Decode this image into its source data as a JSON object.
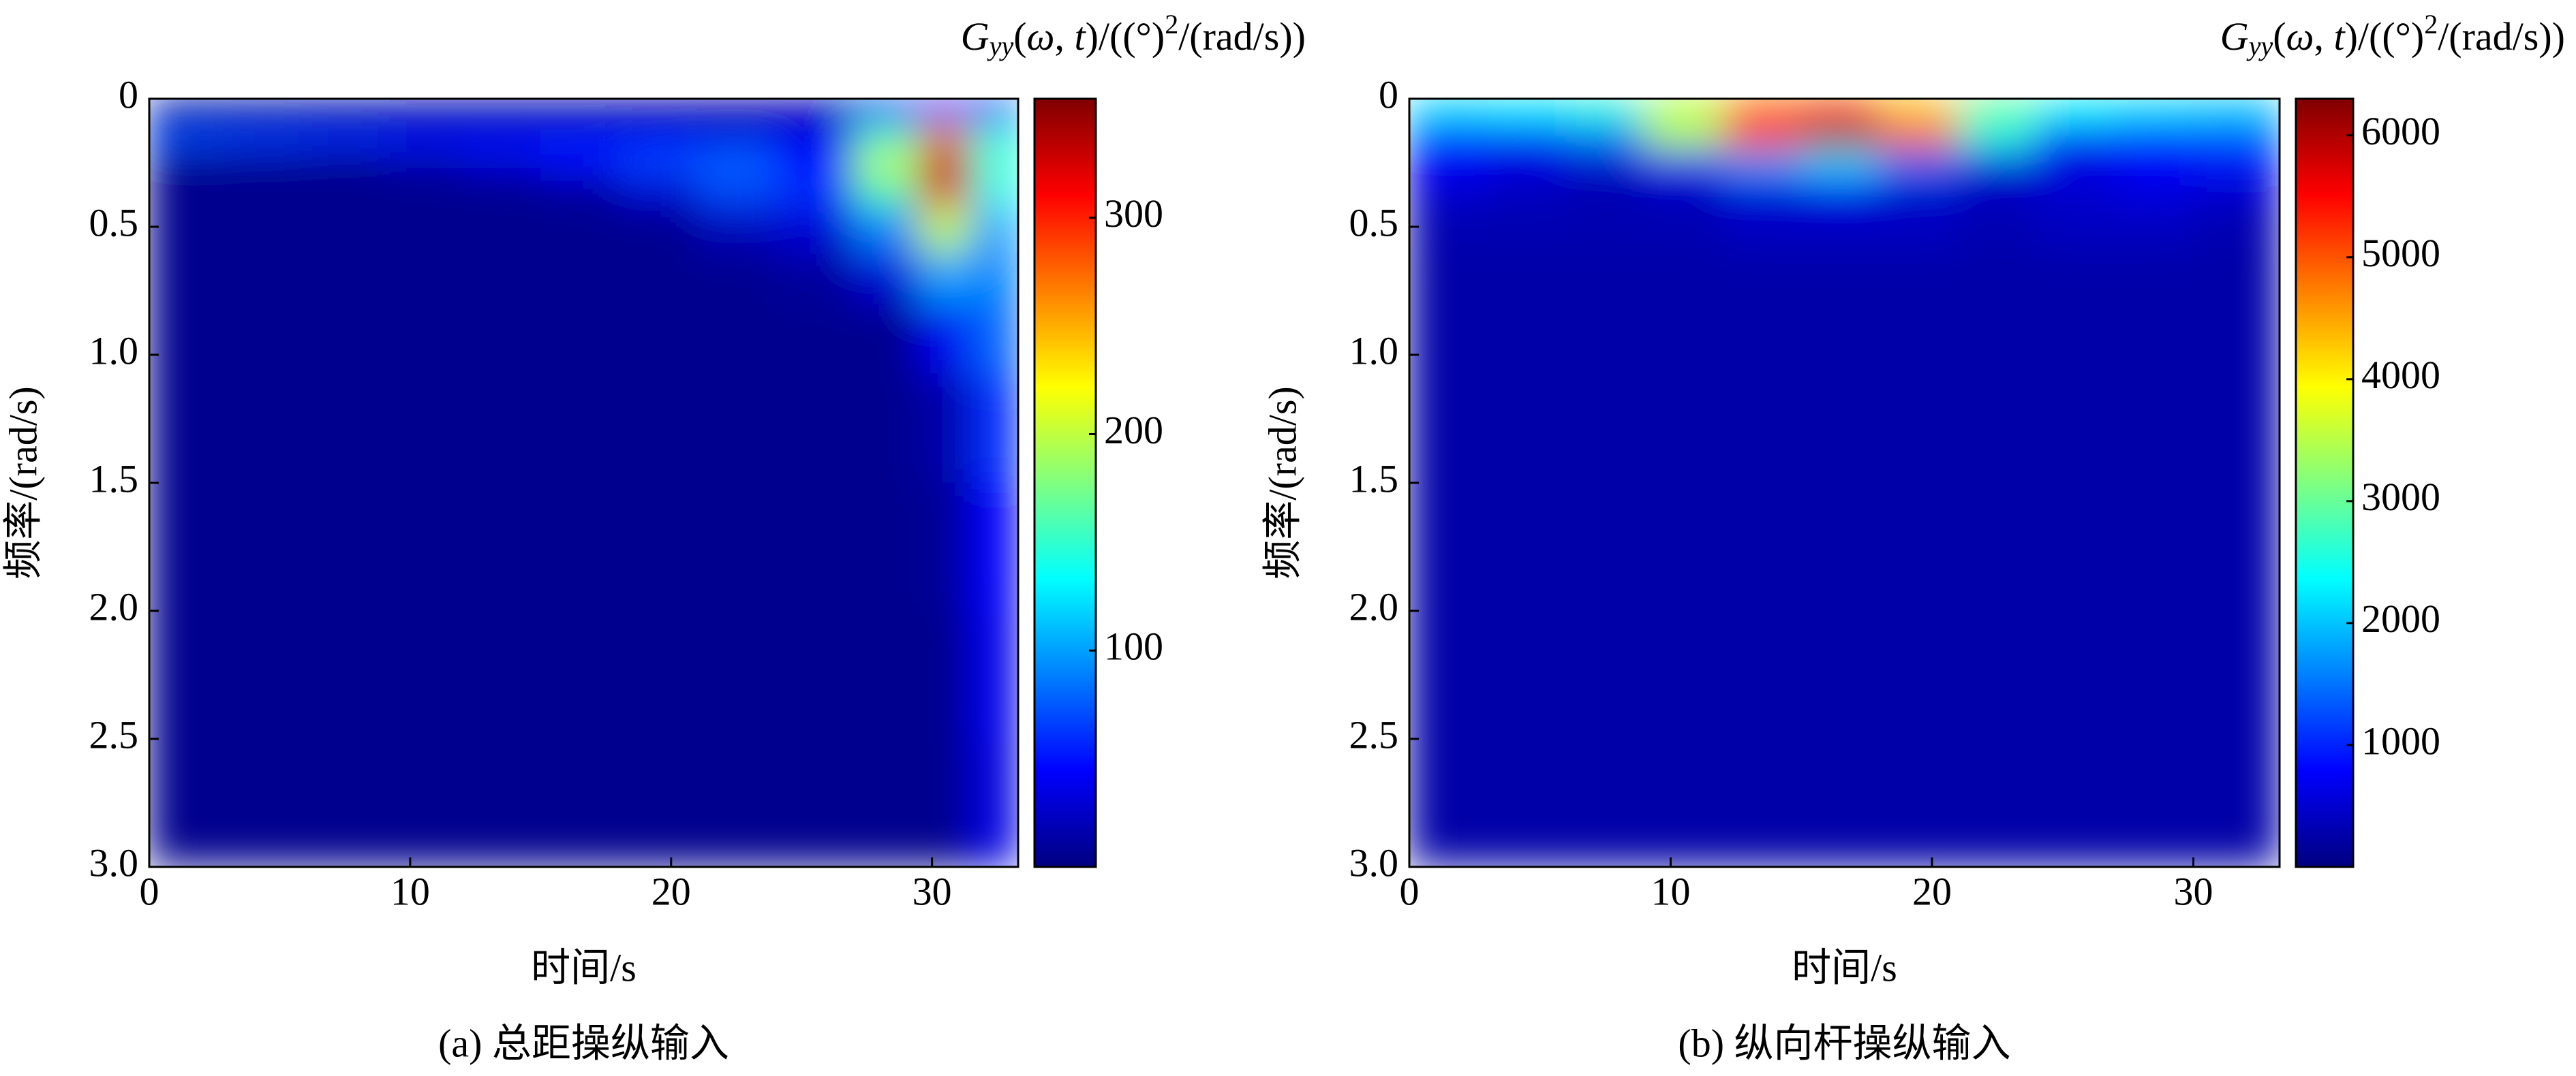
{
  "chart_data": [
    {
      "type": "heatmap",
      "colormap": "jet",
      "y_inverted": true,
      "caption": "(a) 总距操纵输入",
      "xlabel": "时间/s",
      "ylabel": "频率/(rad/s)",
      "colorbar_label": [
        "G",
        "yy",
        "(",
        "ω",
        ", ",
        "t",
        ")/((°)",
        "2",
        "/(rad/s))"
      ],
      "xlim": [
        0,
        33.3
      ],
      "xticks": [
        0,
        10,
        20,
        30
      ],
      "ylim": [
        0,
        3
      ],
      "yticks": [
        0,
        0.5,
        {
          "value": 1,
          "label": "1.0"
        },
        1.5,
        {
          "value": 2,
          "label": "2.0"
        },
        2.5,
        {
          "value": 3,
          "label": "3.0"
        }
      ],
      "clim": [
        0,
        355
      ],
      "cticks": [
        100,
        200,
        300
      ],
      "x": [
        1.5,
        4.5,
        7.5,
        10.5,
        13.5,
        16.5,
        19.5,
        22.5,
        25.5,
        28.5,
        30.5,
        32.5
      ],
      "y": [
        0.05,
        0.15,
        0.25,
        0.35,
        0.5,
        0.7,
        0.9,
        1.25,
        1.75,
        2.25,
        2.75
      ],
      "z": [
        [
          10,
          10,
          10,
          10,
          10,
          10,
          10,
          10,
          15,
          40,
          60,
          40
        ],
        [
          70,
          65,
          60,
          55,
          55,
          55,
          50,
          40,
          40,
          150,
          260,
          140
        ],
        [
          5,
          5,
          5,
          15,
          30,
          50,
          70,
          80,
          50,
          200,
          340,
          150
        ],
        [
          5,
          5,
          5,
          5,
          5,
          10,
          30,
          70,
          60,
          160,
          320,
          140
        ],
        [
          5,
          5,
          5,
          5,
          5,
          5,
          5,
          20,
          30,
          90,
          200,
          100
        ],
        [
          5,
          5,
          5,
          5,
          5,
          5,
          5,
          5,
          10,
          30,
          100,
          90
        ],
        [
          5,
          5,
          5,
          5,
          5,
          5,
          5,
          5,
          5,
          5,
          40,
          80
        ],
        [
          5,
          5,
          5,
          5,
          5,
          5,
          5,
          5,
          5,
          5,
          15,
          60
        ],
        [
          5,
          5,
          5,
          5,
          5,
          5,
          5,
          5,
          5,
          5,
          8,
          45
        ],
        [
          5,
          5,
          5,
          5,
          5,
          5,
          5,
          5,
          5,
          5,
          5,
          40
        ],
        [
          5,
          5,
          5,
          5,
          5,
          5,
          5,
          5,
          5,
          5,
          5,
          35
        ]
      ]
    },
    {
      "type": "heatmap",
      "colormap": "jet",
      "y_inverted": true,
      "caption": "(b) 纵向杆操纵输入",
      "xlabel": "时间/s",
      "ylabel": "频率/(rad/s)",
      "colorbar_label": [
        "G",
        "yy",
        "(",
        "ω",
        ", ",
        "t",
        ")/((°)",
        "2",
        "/(rad/s))"
      ],
      "xlim": [
        0,
        33.3
      ],
      "xticks": [
        0,
        10,
        20,
        30
      ],
      "ylim": [
        0,
        3
      ],
      "yticks": [
        0,
        0.5,
        {
          "value": 1,
          "label": "1.0"
        },
        1.5,
        {
          "value": 2,
          "label": "2.0"
        },
        2.5,
        {
          "value": 3,
          "label": "3.0"
        }
      ],
      "clim": [
        0,
        6300
      ],
      "cticks": [
        1000,
        2000,
        3000,
        4000,
        5000,
        6000
      ],
      "x": [
        1.5,
        4.5,
        7.5,
        10.5,
        13.5,
        16.5,
        19.5,
        22.5,
        25.5,
        28.5,
        31.5
      ],
      "y": [
        0.05,
        0.15,
        0.25,
        0.35,
        0.5,
        0.7,
        0.9,
        1.25,
        1.75,
        2.25,
        2.75
      ],
      "z": [
        [
          2200,
          2300,
          2600,
          3500,
          4800,
          5000,
          4300,
          3000,
          2400,
          2200,
          2100
        ],
        [
          1000,
          900,
          1500,
          3500,
          5500,
          6200,
          5000,
          2500,
          1000,
          1000,
          1200
        ],
        [
          800,
          600,
          500,
          900,
          1800,
          2200,
          1500,
          600,
          600,
          800,
          900
        ],
        [
          500,
          400,
          300,
          400,
          600,
          700,
          500,
          400,
          500,
          600,
          500
        ],
        [
          300,
          300,
          300,
          300,
          400,
          400,
          400,
          300,
          400,
          400,
          300
        ],
        [
          250,
          250,
          250,
          250,
          250,
          250,
          250,
          250,
          250,
          250,
          250
        ],
        [
          250,
          250,
          250,
          250,
          250,
          250,
          250,
          250,
          250,
          250,
          250
        ],
        [
          250,
          250,
          250,
          250,
          250,
          250,
          250,
          250,
          250,
          250,
          250
        ],
        [
          250,
          250,
          250,
          250,
          250,
          250,
          250,
          250,
          250,
          250,
          250
        ],
        [
          250,
          250,
          250,
          250,
          250,
          250,
          250,
          250,
          250,
          250,
          250
        ],
        [
          250,
          250,
          250,
          250,
          250,
          250,
          250,
          250,
          250,
          250,
          250
        ]
      ]
    }
  ]
}
